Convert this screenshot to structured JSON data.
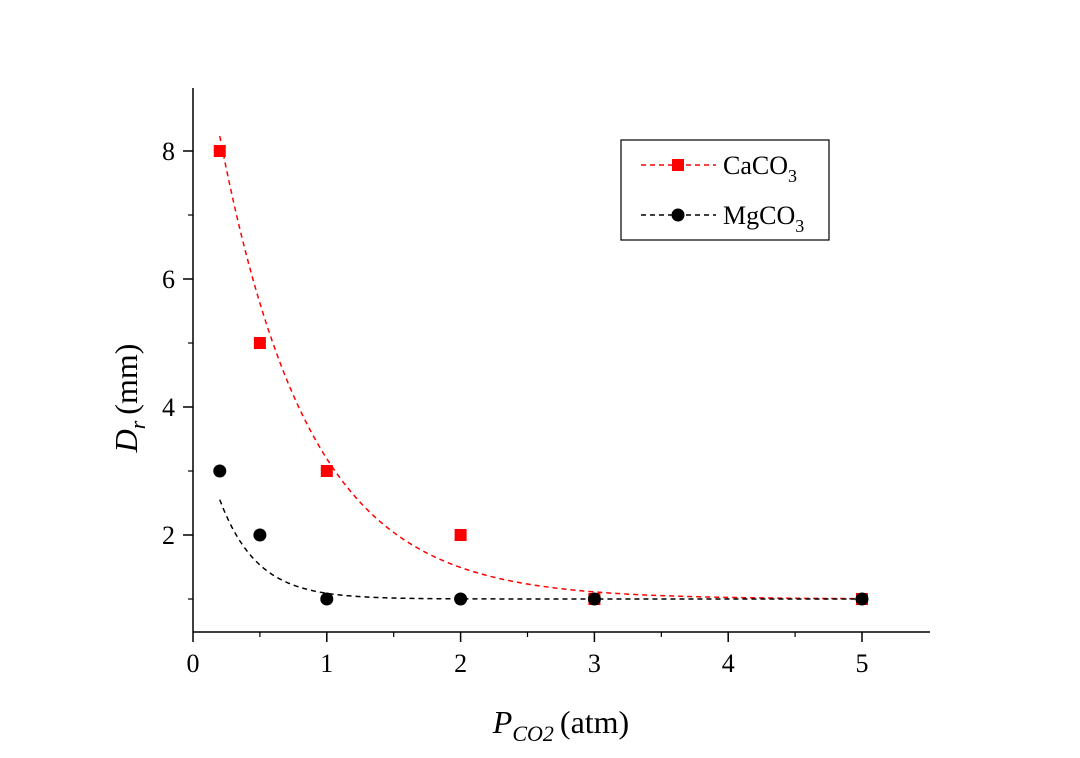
{
  "chart_data": {
    "type": "scatter",
    "title": "",
    "xlabel": {
      "main": "P",
      "sub": "CO2",
      "unit": "(atm)"
    },
    "ylabel": {
      "main": "D",
      "sub": "r",
      "unit": "(mm)"
    },
    "xlim": [
      0,
      5.5
    ],
    "ylim": [
      0.5,
      9
    ],
    "x_ticks": [
      0,
      1,
      2,
      3,
      4,
      5
    ],
    "y_ticks": [
      2,
      4,
      6,
      8
    ],
    "legend_position": "top-right",
    "series": [
      {
        "name": "CaCO",
        "name_sub": "3",
        "marker": "square",
        "color": "#ff0000",
        "line_style": "dashed",
        "x": [
          0.2,
          0.5,
          1,
          2,
          3,
          5
        ],
        "y": [
          8,
          5,
          3,
          2,
          1,
          1
        ],
        "fit": {
          "type": "exp-decay",
          "y0": 1.0,
          "A": 9.75,
          "t": 0.67
        }
      },
      {
        "name": "MgCO",
        "name_sub": "3",
        "marker": "circle",
        "color": "#000000",
        "line_style": "dashed",
        "x": [
          0.2,
          0.5,
          1,
          2,
          3,
          5
        ],
        "y": [
          3,
          2,
          1,
          1,
          1,
          1
        ],
        "fit": {
          "type": "exp-decay",
          "y0": 1.0,
          "A": 3.17,
          "t": 0.28
        }
      }
    ]
  }
}
